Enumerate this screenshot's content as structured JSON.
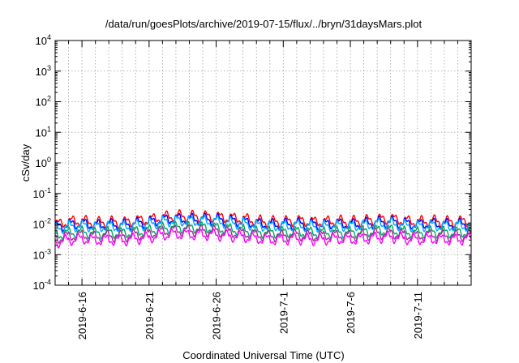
{
  "chart_data": {
    "type": "line",
    "title": "/data/run/goesPlots/archive/2019-07-15/flux/../bryn/31daysMars.plot",
    "xlabel": "Coordinated Universal Time (UTC)",
    "ylabel": "cSv/day",
    "yscale": "log",
    "ylim": [
      0.0001,
      10000
    ],
    "xlim": [
      "2019-06-14",
      "2019-07-15"
    ],
    "grid": true,
    "y_ticks": [
      {
        "value": 0.0001,
        "base": "10",
        "exp": "-4"
      },
      {
        "value": 0.001,
        "base": "10",
        "exp": "-3"
      },
      {
        "value": 0.01,
        "base": "10",
        "exp": "-2"
      },
      {
        "value": 0.1,
        "base": "10",
        "exp": "-1"
      },
      {
        "value": 1,
        "base": "10",
        "exp": "0"
      },
      {
        "value": 10,
        "base": "10",
        "exp": "1"
      },
      {
        "value": 100,
        "base": "10",
        "exp": "2"
      },
      {
        "value": 1000,
        "base": "10",
        "exp": "3"
      },
      {
        "value": 10000,
        "base": "10",
        "exp": "4"
      }
    ],
    "x_ticks": [
      {
        "value": "2019-06-16",
        "label": "2019-6-16"
      },
      {
        "value": "2019-06-21",
        "label": "2019-6-21"
      },
      {
        "value": "2019-06-26",
        "label": "2019-6-26"
      },
      {
        "value": "2019-07-01",
        "label": "2019-7-1"
      },
      {
        "value": "2019-07-06",
        "label": "2019-7-6"
      },
      {
        "value": "2019-07-11",
        "label": "2019-7-11"
      }
    ],
    "x": [
      "2019-06-14",
      "2019-06-15",
      "2019-06-16",
      "2019-06-17",
      "2019-06-18",
      "2019-06-19",
      "2019-06-20",
      "2019-06-21",
      "2019-06-22",
      "2019-06-23",
      "2019-06-24",
      "2019-06-25",
      "2019-06-26",
      "2019-06-27",
      "2019-06-28",
      "2019-06-29",
      "2019-06-30",
      "2019-07-01",
      "2019-07-02",
      "2019-07-03",
      "2019-07-04",
      "2019-07-05",
      "2019-07-06",
      "2019-07-07",
      "2019-07-08",
      "2019-07-09",
      "2019-07-10",
      "2019-07-11",
      "2019-07-12",
      "2019-07-13",
      "2019-07-14",
      "2019-07-15"
    ],
    "series": [
      {
        "color": "#ff0000",
        "values": [
          0.0095,
          0.012,
          0.013,
          0.011,
          0.012,
          0.011,
          0.013,
          0.014,
          0.017,
          0.019,
          0.018,
          0.018,
          0.017,
          0.016,
          0.015,
          0.013,
          0.012,
          0.012,
          0.013,
          0.012,
          0.012,
          0.013,
          0.012,
          0.013,
          0.014,
          0.015,
          0.013,
          0.012,
          0.013,
          0.012,
          0.012,
          0.013
        ]
      },
      {
        "color": "#0000ff",
        "values": [
          0.0078,
          0.0095,
          0.0105,
          0.0092,
          0.0098,
          0.0092,
          0.0105,
          0.0115,
          0.014,
          0.015,
          0.0145,
          0.0145,
          0.014,
          0.013,
          0.012,
          0.0105,
          0.0098,
          0.0098,
          0.0105,
          0.0098,
          0.0098,
          0.0105,
          0.0098,
          0.0105,
          0.0115,
          0.012,
          0.0105,
          0.0098,
          0.0105,
          0.0098,
          0.0098,
          0.0105
        ]
      },
      {
        "color": "#00aaff",
        "values": [
          0.0068,
          0.0083,
          0.009,
          0.008,
          0.0085,
          0.008,
          0.009,
          0.0098,
          0.012,
          0.013,
          0.0125,
          0.0125,
          0.012,
          0.011,
          0.0105,
          0.009,
          0.0085,
          0.0085,
          0.009,
          0.0085,
          0.0085,
          0.009,
          0.0085,
          0.009,
          0.0098,
          0.0105,
          0.009,
          0.0085,
          0.009,
          0.0085,
          0.0085,
          0.009
        ]
      },
      {
        "color": "#00aa66",
        "values": [
          0.0042,
          0.0052,
          0.0056,
          0.005,
          0.0053,
          0.005,
          0.0056,
          0.0061,
          0.0074,
          0.008,
          0.0077,
          0.0077,
          0.0074,
          0.0068,
          0.0064,
          0.0056,
          0.0053,
          0.0053,
          0.0056,
          0.0053,
          0.0053,
          0.0056,
          0.0053,
          0.0056,
          0.0061,
          0.0064,
          0.0056,
          0.0053,
          0.0056,
          0.0053,
          0.0053,
          0.0056
        ]
      },
      {
        "color": "#993399",
        "values": [
          0.0033,
          0.004,
          0.0044,
          0.0039,
          0.0041,
          0.0039,
          0.0044,
          0.0048,
          0.0058,
          0.0063,
          0.006,
          0.006,
          0.0058,
          0.0053,
          0.005,
          0.0044,
          0.0041,
          0.0041,
          0.0044,
          0.0041,
          0.0041,
          0.0044,
          0.0041,
          0.0044,
          0.0048,
          0.005,
          0.0044,
          0.0041,
          0.0044,
          0.0041,
          0.0041,
          0.0044
        ]
      },
      {
        "color": "#ff00ff",
        "values": [
          0.0025,
          0.003,
          0.0033,
          0.0029,
          0.0031,
          0.0029,
          0.0033,
          0.0036,
          0.0044,
          0.0047,
          0.0045,
          0.0045,
          0.0044,
          0.004,
          0.0038,
          0.0033,
          0.0031,
          0.0031,
          0.0033,
          0.0031,
          0.0031,
          0.0033,
          0.0031,
          0.0033,
          0.0036,
          0.0038,
          0.0033,
          0.0031,
          0.0033,
          0.0031,
          0.0031,
          0.0033
        ]
      }
    ]
  }
}
